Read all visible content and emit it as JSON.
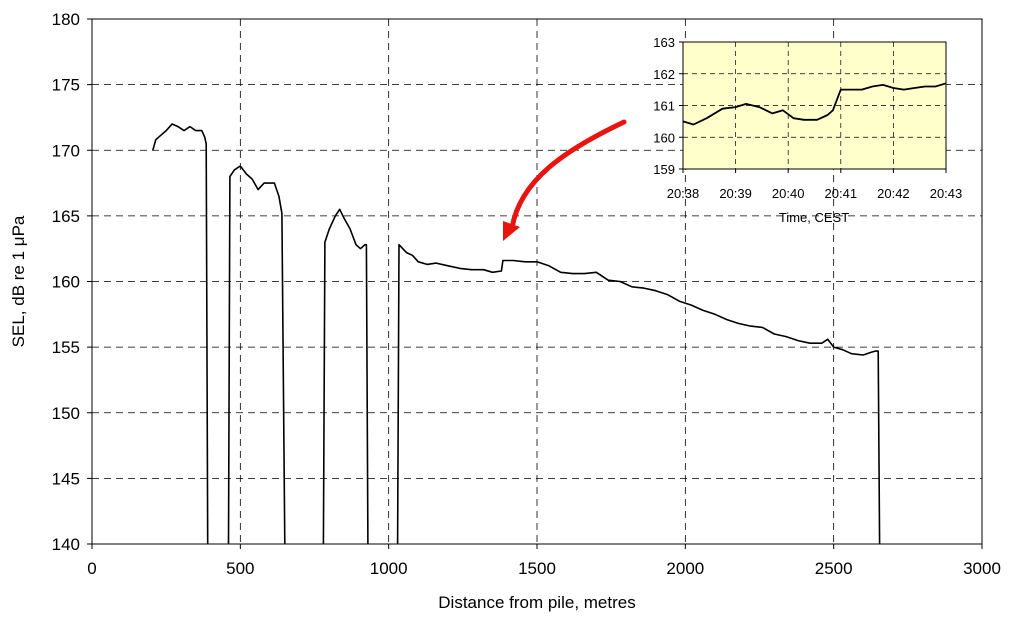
{
  "chart_data": [
    {
      "type": "line",
      "xlabel": "Distance from pile, metres",
      "ylabel": "SEL, dB re 1 μPa",
      "xlim": [
        0,
        3000
      ],
      "ylim": [
        140,
        180
      ],
      "xticks": [
        "0",
        "500",
        "1000",
        "1500",
        "2000",
        "2500",
        "3000"
      ],
      "yticks": [
        "140",
        "145",
        "150",
        "155",
        "160",
        "165",
        "170",
        "175",
        "180"
      ],
      "grid": true,
      "line_color": "#000000",
      "segments": [
        [
          [
            205,
            170
          ],
          [
            215,
            170.8
          ],
          [
            230,
            171.1
          ],
          [
            250,
            171.5
          ],
          [
            270,
            172
          ],
          [
            290,
            171.8
          ],
          [
            310,
            171.5
          ],
          [
            330,
            171.8
          ],
          [
            350,
            171.5
          ],
          [
            370,
            171.5
          ],
          [
            380,
            171
          ],
          [
            385,
            170.5
          ],
          [
            390,
            140
          ]
        ],
        [
          [
            460,
            140
          ],
          [
            465,
            168
          ],
          [
            480,
            168.5
          ],
          [
            500,
            168.8
          ],
          [
            520,
            168.2
          ],
          [
            540,
            167.8
          ],
          [
            560,
            167
          ],
          [
            580,
            167.5
          ],
          [
            600,
            167.5
          ],
          [
            615,
            167.5
          ],
          [
            630,
            166.5
          ],
          [
            640,
            165.2
          ],
          [
            650,
            140
          ]
        ],
        [
          [
            780,
            140
          ],
          [
            785,
            163
          ],
          [
            800,
            164
          ],
          [
            820,
            165
          ],
          [
            835,
            165.5
          ],
          [
            850,
            164.8
          ],
          [
            870,
            164
          ],
          [
            890,
            162.8
          ],
          [
            905,
            162.5
          ],
          [
            920,
            162.8
          ],
          [
            925,
            162.8
          ],
          [
            930,
            140
          ]
        ],
        [
          [
            1030,
            140
          ],
          [
            1035,
            162.8
          ],
          [
            1060,
            162.2
          ],
          [
            1080,
            162
          ],
          [
            1100,
            161.5
          ],
          [
            1130,
            161.3
          ],
          [
            1160,
            161.4
          ],
          [
            1200,
            161.2
          ],
          [
            1240,
            161
          ],
          [
            1280,
            160.9
          ],
          [
            1320,
            160.9
          ],
          [
            1350,
            160.7
          ],
          [
            1380,
            160.8
          ],
          [
            1385,
            161.6
          ],
          [
            1420,
            161.6
          ],
          [
            1460,
            161.5
          ],
          [
            1500,
            161.5
          ],
          [
            1540,
            161.2
          ],
          [
            1580,
            160.7
          ],
          [
            1620,
            160.6
          ],
          [
            1660,
            160.6
          ],
          [
            1700,
            160.7
          ],
          [
            1740,
            160.1
          ],
          [
            1780,
            160
          ],
          [
            1820,
            159.6
          ],
          [
            1860,
            159.5
          ],
          [
            1900,
            159.3
          ],
          [
            1940,
            159
          ],
          [
            1980,
            158.5
          ],
          [
            2020,
            158.2
          ],
          [
            2060,
            157.8
          ],
          [
            2100,
            157.5
          ],
          [
            2140,
            157.1
          ],
          [
            2180,
            156.8
          ],
          [
            2220,
            156.6
          ],
          [
            2260,
            156.5
          ],
          [
            2300,
            156
          ],
          [
            2340,
            155.8
          ],
          [
            2380,
            155.5
          ],
          [
            2420,
            155.3
          ],
          [
            2460,
            155.3
          ],
          [
            2480,
            155.6
          ],
          [
            2500,
            155
          ],
          [
            2530,
            154.8
          ],
          [
            2560,
            154.5
          ],
          [
            2600,
            154.4
          ],
          [
            2625,
            154.6
          ],
          [
            2640,
            154.7
          ],
          [
            2650,
            154.7
          ],
          [
            2655,
            140
          ]
        ]
      ]
    },
    {
      "type": "line",
      "xlabel": "Time, CEST",
      "ylabel": "",
      "ylim": [
        159,
        163
      ],
      "xticks": [
        "20:38",
        "20:39",
        "20:40",
        "20:41",
        "20:42",
        "20:43"
      ],
      "yticks": [
        "159",
        "160",
        "161",
        "162",
        "163"
      ],
      "grid": true,
      "background_color": "#ffffcc",
      "line_color": "#000000",
      "points": [
        [
          0,
          160.5
        ],
        [
          0.2,
          160.4
        ],
        [
          0.45,
          160.6
        ],
        [
          0.75,
          160.9
        ],
        [
          1.0,
          160.95
        ],
        [
          1.2,
          161.05
        ],
        [
          1.45,
          160.95
        ],
        [
          1.7,
          160.75
        ],
        [
          1.9,
          160.85
        ],
        [
          2.1,
          160.6
        ],
        [
          2.3,
          160.55
        ],
        [
          2.55,
          160.55
        ],
        [
          2.75,
          160.7
        ],
        [
          2.85,
          160.85
        ],
        [
          3.0,
          161.5
        ],
        [
          3.15,
          161.5
        ],
        [
          3.4,
          161.5
        ],
        [
          3.6,
          161.6
        ],
        [
          3.8,
          161.65
        ],
        [
          4.0,
          161.55
        ],
        [
          4.2,
          161.5
        ],
        [
          4.4,
          161.55
        ],
        [
          4.6,
          161.6
        ],
        [
          4.8,
          161.6
        ],
        [
          5.0,
          161.7
        ]
      ]
    }
  ],
  "annotation": {
    "type": "arrow",
    "color": "#e8150f"
  }
}
